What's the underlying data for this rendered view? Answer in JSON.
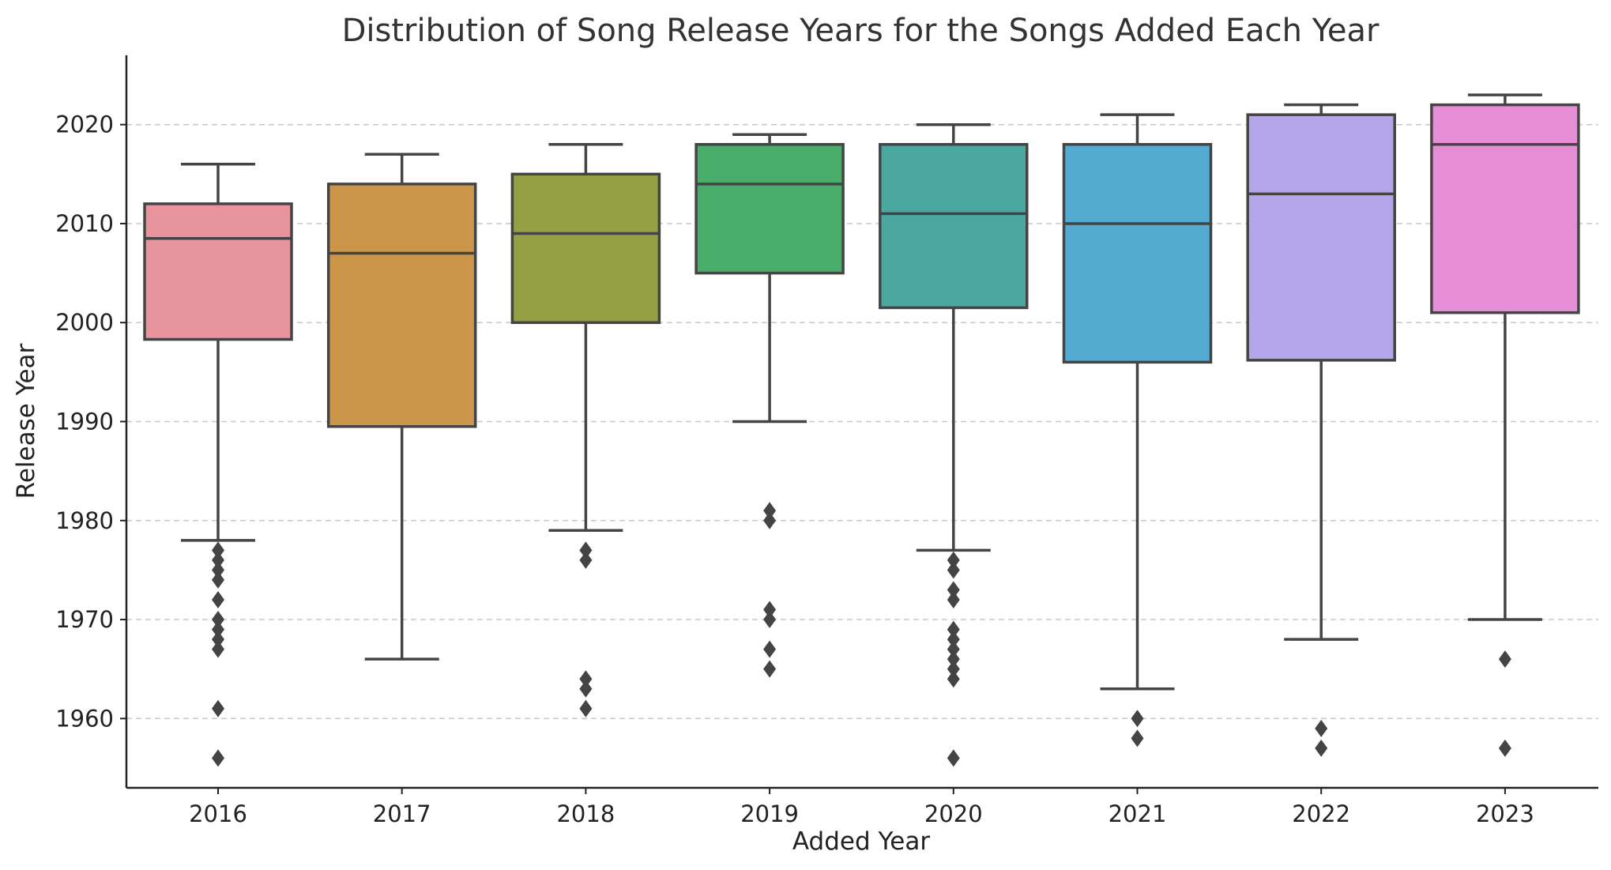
{
  "chart_data": {
    "type": "box",
    "title": "Distribution of Song Release Years for the Songs Added Each Year",
    "xlabel": "Added Year",
    "ylabel": "Release Year",
    "ylim": [
      1953,
      2027
    ],
    "yticks": [
      1960,
      1970,
      1980,
      1990,
      2000,
      2010,
      2020
    ],
    "grid": "y-dashed",
    "categories": [
      "2016",
      "2017",
      "2018",
      "2019",
      "2020",
      "2021",
      "2022",
      "2023"
    ],
    "boxes": [
      {
        "category": "2016",
        "color": "#e8949f",
        "whisker_low": 1978,
        "q1": 1998.3,
        "median": 2008.5,
        "q3": 2012,
        "whisker_high": 2016,
        "outliers": [
          1977,
          1976,
          1975,
          1974,
          1972,
          1970,
          1969,
          1968,
          1967,
          1961,
          1956
        ]
      },
      {
        "category": "2017",
        "color": "#cb964a",
        "whisker_low": 1966,
        "q1": 1989.5,
        "median": 2007,
        "q3": 2014,
        "whisker_high": 2017,
        "outliers": []
      },
      {
        "category": "2018",
        "color": "#95a044",
        "whisker_low": 1979,
        "q1": 2000,
        "median": 2009,
        "q3": 2015,
        "whisker_high": 2018,
        "outliers": [
          1977,
          1976,
          1964,
          1963,
          1961
        ]
      },
      {
        "category": "2019",
        "color": "#49ad6b",
        "whisker_low": 1990,
        "q1": 2005,
        "median": 2014,
        "q3": 2018,
        "whisker_high": 2019,
        "outliers": [
          1981,
          1980,
          1971,
          1970,
          1967,
          1965
        ]
      },
      {
        "category": "2020",
        "color": "#4aa8a0",
        "whisker_low": 1977,
        "q1": 2001.5,
        "median": 2011,
        "q3": 2018,
        "whisker_high": 2020,
        "outliers": [
          1976,
          1975,
          1973,
          1972,
          1969,
          1968,
          1967,
          1966,
          1965,
          1964,
          1956
        ]
      },
      {
        "category": "2021",
        "color": "#54abd1",
        "whisker_low": 1963,
        "q1": 1996,
        "median": 2010,
        "q3": 2018,
        "whisker_high": 2021,
        "outliers": [
          1960,
          1958
        ]
      },
      {
        "category": "2022",
        "color": "#b5a6ea",
        "whisker_low": 1968,
        "q1": 1996.2,
        "median": 2013,
        "q3": 2021,
        "whisker_high": 2022,
        "outliers": [
          1959,
          1957
        ]
      },
      {
        "category": "2023",
        "color": "#e58ed6",
        "whisker_low": 1970,
        "q1": 2001,
        "median": 2018,
        "q3": 2022,
        "whisker_high": 2023,
        "outliers": [
          1966,
          1957
        ]
      }
    ]
  }
}
